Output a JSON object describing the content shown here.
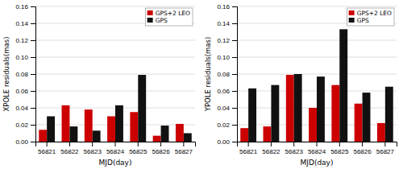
{
  "chart_data": [
    {
      "type": "bar",
      "categories": [
        "56821",
        "56822",
        "56823",
        "56824",
        "56825",
        "56826",
        "56827"
      ],
      "series": [
        {
          "name": "GPS+2 LEO",
          "color": "#cc0000",
          "values": [
            0.014,
            0.043,
            0.038,
            0.03,
            0.035,
            0.007,
            0.021
          ]
        },
        {
          "name": "GPS",
          "color": "#111111",
          "values": [
            0.03,
            0.018,
            0.013,
            0.043,
            0.079,
            0.019,
            0.01
          ]
        }
      ],
      "xlabel": "MJD(day)",
      "ylabel": "XPOLE residuals(mas)",
      "ylim": [
        0,
        0.16
      ],
      "yticks": [
        {
          "value": 0,
          "label": "0.00"
        },
        0.02,
        0.04,
        0.06,
        0.08,
        {
          "value": 0.1,
          "label": "0.10"
        },
        0.12,
        0.14,
        0.16
      ],
      "grid": true,
      "legend": "upper right"
    },
    {
      "type": "bar",
      "categories": [
        "56821",
        "56822",
        "56823",
        "56824",
        "56825",
        "56826",
        "56827"
      ],
      "series": [
        {
          "name": "GPS+2 LEO",
          "color": "#cc0000",
          "values": [
            0.016,
            0.018,
            0.079,
            0.04,
            0.067,
            0.045,
            0.022
          ]
        },
        {
          "name": "GPS",
          "color": "#111111",
          "values": [
            0.063,
            0.067,
            0.08,
            0.077,
            0.133,
            0.058,
            0.065
          ]
        }
      ],
      "xlabel": "MJD(day)",
      "ylabel": "YPOLE residuals(mas)",
      "ylim": [
        0,
        0.16
      ],
      "yticks": [
        {
          "value": 0,
          "label": "0.00"
        },
        0.02,
        0.04,
        0.06,
        0.08,
        {
          "value": 0.1,
          "label": "0.10"
        },
        0.12,
        0.14,
        0.16
      ],
      "grid": true,
      "legend": "upper right"
    }
  ]
}
